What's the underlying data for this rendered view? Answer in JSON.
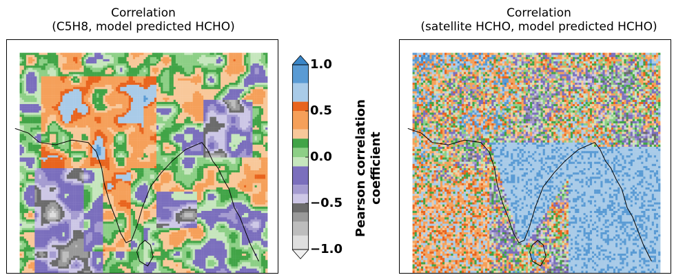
{
  "chart_data": [
    {
      "type": "heatmap",
      "title_line1": "Correlation",
      "title_line2": "(C5H8, model predicted HCHO)",
      "dominant_pattern": "mostly positive; strong positive over northern and central India, negative patches over west-central India and east",
      "seed": 11
    },
    {
      "type": "heatmap",
      "title_line1": "Correlation",
      "title_line2": "(satellite HCHO, model predicted HCHO)",
      "dominant_pattern": "negative over southern India and Bay of Bengal, positive over north",
      "seed": 29
    }
  ],
  "colorbar": {
    "label_line1": "Pearson correlation",
    "label_line2": "coefficient",
    "vmin": -1.0,
    "vmax": 1.0,
    "ticks": [
      {
        "value": 1.0,
        "label": "1.0"
      },
      {
        "value": 0.5,
        "label": "0.5"
      },
      {
        "value": 0.0,
        "label": "0.0"
      },
      {
        "value": -0.5,
        "label": "−0.5"
      },
      {
        "value": -1.0,
        "label": "−1.0"
      }
    ],
    "levels": [
      {
        "from": 0.8,
        "to": 1.0,
        "color": "#5a9bd4"
      },
      {
        "from": 0.6,
        "to": 0.8,
        "color": "#a9cbe8"
      },
      {
        "from": 0.5,
        "to": 0.6,
        "color": "#e8641e"
      },
      {
        "from": 0.3,
        "to": 0.5,
        "color": "#f5a05a"
      },
      {
        "from": 0.2,
        "to": 0.3,
        "color": "#f8c89a"
      },
      {
        "from": 0.1,
        "to": 0.2,
        "color": "#41a447"
      },
      {
        "from": 0.0,
        "to": 0.1,
        "color": "#8dcf86"
      },
      {
        "from": -0.1,
        "to": 0.0,
        "color": "#c6e6bd"
      },
      {
        "from": -0.3,
        "to": -0.1,
        "color": "#7b6fbd"
      },
      {
        "from": -0.4,
        "to": -0.3,
        "color": "#a49bd0"
      },
      {
        "from": -0.5,
        "to": -0.4,
        "color": "#cdc7e6"
      },
      {
        "from": -0.6,
        "to": -0.5,
        "color": "#6b6b6b"
      },
      {
        "from": -0.7,
        "to": -0.6,
        "color": "#9a9a9a"
      },
      {
        "from": -0.85,
        "to": -0.7,
        "color": "#bdbdbd"
      },
      {
        "from": -1.0,
        "to": -0.85,
        "color": "#dedede"
      }
    ],
    "extend_top_color": "#3a86c8",
    "extend_bottom_color": "#f0f0f0"
  }
}
